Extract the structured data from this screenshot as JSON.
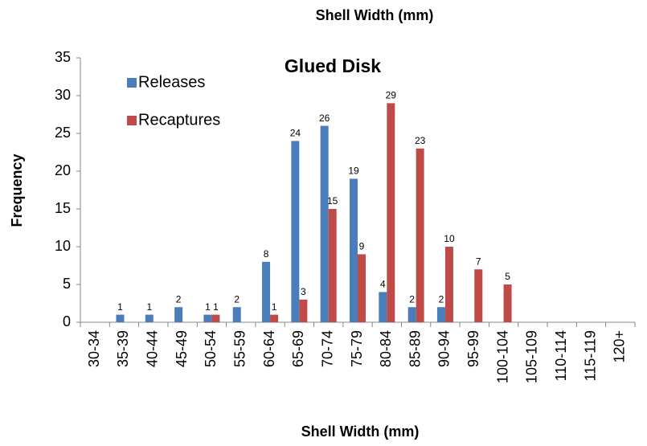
{
  "chart_data": {
    "type": "bar",
    "title": "Shell Width (mm)",
    "subtitle": "Glued Disk",
    "x_label": "Shell Width (mm)",
    "y_label": "Frequency",
    "categories": [
      "30-34",
      "35-39",
      "40-44",
      "45-49",
      "50-54",
      "55-59",
      "60-64",
      "65-69",
      "70-74",
      "75-79",
      "80-84",
      "85-89",
      "90-94",
      "95-99",
      "100-104",
      "105-109",
      "110-114",
      "115-119",
      "120+"
    ],
    "series": [
      {
        "name": "Releases",
        "color": "#4a7ebb",
        "values": [
          null,
          1,
          1,
          2,
          1,
          2,
          8,
          24,
          26,
          19,
          4,
          2,
          2,
          null,
          null,
          null,
          null,
          null,
          null
        ]
      },
      {
        "name": "Recaptures",
        "color": "#be4b48",
        "values": [
          null,
          null,
          null,
          null,
          1,
          null,
          1,
          3,
          15,
          9,
          29,
          23,
          10,
          7,
          5,
          null,
          null,
          null,
          null
        ]
      }
    ],
    "ylim": [
      0,
      35
    ],
    "yticks": [
      0,
      5,
      10,
      15,
      20,
      25,
      30,
      35
    ],
    "grid": false,
    "legend": "top-left",
    "data_labels": true
  }
}
